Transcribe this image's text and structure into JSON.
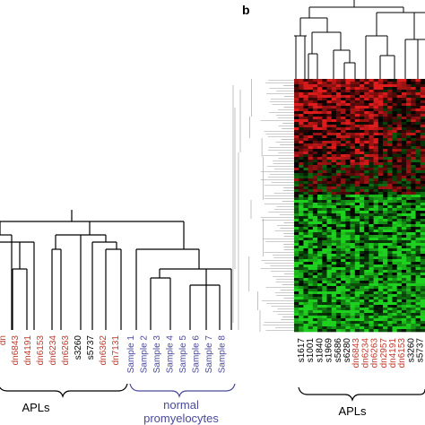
{
  "panels": {
    "b_label": "b"
  },
  "left_panel": {
    "apl_samples": [
      {
        "label": "dn",
        "color": "#c0392b"
      },
      {
        "label": "dn6843",
        "color": "#c0392b"
      },
      {
        "label": "dn4191",
        "color": "#c0392b"
      },
      {
        "label": "dn6153",
        "color": "#c0392b"
      },
      {
        "label": "dn6234",
        "color": "#c0392b"
      },
      {
        "label": "dn6263",
        "color": "#c0392b"
      },
      {
        "label": "s3260",
        "color": "#000000"
      },
      {
        "label": "s5737",
        "color": "#000000"
      },
      {
        "label": "dn6362",
        "color": "#c0392b"
      },
      {
        "label": "dn7131",
        "color": "#c0392b"
      }
    ],
    "normal_samples": [
      {
        "label": "Sample 1",
        "color": "#4a4a9a"
      },
      {
        "label": "Sample 2",
        "color": "#4a4a9a"
      },
      {
        "label": "Sample 3",
        "color": "#4a4a9a"
      },
      {
        "label": "Sample 4",
        "color": "#4a4a9a"
      },
      {
        "label": "Sample 5",
        "color": "#4a4a9a"
      },
      {
        "label": "Sample 6",
        "color": "#4a4a9a"
      },
      {
        "label": "Sample 7",
        "color": "#4a4a9a"
      },
      {
        "label": "Sample 8",
        "color": "#4a4a9a"
      }
    ],
    "apl_group_label": "APLs",
    "normal_group_label_line1": "normal",
    "normal_group_label_line2": "promyelocytes"
  },
  "right_panel": {
    "samples": [
      {
        "label": "s1617",
        "color": "#000000"
      },
      {
        "label": "s1001",
        "color": "#000000"
      },
      {
        "label": "s1840",
        "color": "#000000"
      },
      {
        "label": "s1969",
        "color": "#000000"
      },
      {
        "label": "s5686",
        "color": "#000000"
      },
      {
        "label": "s6280",
        "color": "#000000"
      },
      {
        "label": "dn6843",
        "color": "#c0392b"
      },
      {
        "label": "dn6234",
        "color": "#c0392b"
      },
      {
        "label": "dn6263",
        "color": "#c0392b"
      },
      {
        "label": "dn2957",
        "color": "#c0392b"
      },
      {
        "label": "dn4191",
        "color": "#c0392b"
      },
      {
        "label": "dn6153",
        "color": "#c0392b"
      },
      {
        "label": "s3260",
        "color": "#000000"
      },
      {
        "label": "s5737",
        "color": "#000000"
      }
    ],
    "group_label": "APLs",
    "heatmap_colors": {
      "up": "#e01b1b",
      "down": "#1fd11f",
      "neutral": "#000000"
    }
  }
}
